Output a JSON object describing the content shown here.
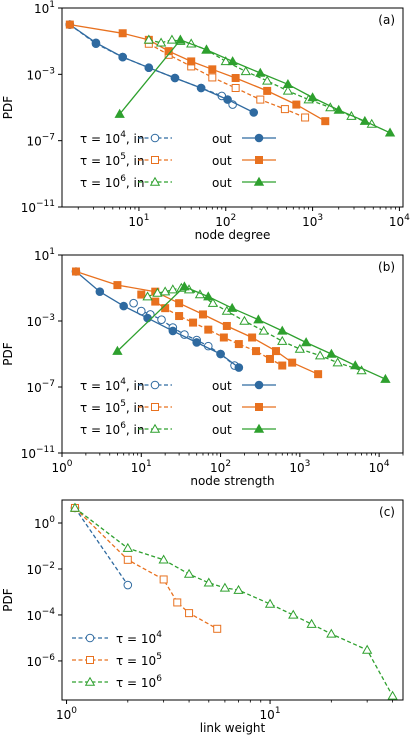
{
  "colors": {
    "blue": "#2f6aa0",
    "orange": "#e8711f",
    "green": "#2ea02e"
  },
  "chart_data": [
    {
      "type": "line",
      "panel_label": "(a)",
      "xlabel": "node degree",
      "ylabel": "PDF",
      "xscale": "log",
      "yscale": "log",
      "xlim": [
        1.3,
        11000
      ],
      "ylim": [
        1e-11,
        10
      ],
      "xticks": [
        {
          "v": 10,
          "t": "10",
          "e": "1"
        },
        {
          "v": 100,
          "t": "10",
          "e": "2"
        },
        {
          "v": 1000,
          "t": "10",
          "e": "3"
        },
        {
          "v": 10000,
          "t": "10",
          "e": "4"
        }
      ],
      "yticks": [
        {
          "v": 10,
          "t": "10",
          "e": "1"
        },
        {
          "v": 0.001,
          "t": "10",
          "e": "−3"
        },
        {
          "v": 1e-07,
          "t": "10",
          "e": "−7"
        },
        {
          "v": 1e-11,
          "t": "10",
          "e": "−11"
        }
      ],
      "legend": {
        "placement": "lower-left",
        "rows": [
          {
            "tau": "τ = 10",
            "exp": "4",
            "in": ", in",
            "out": "out",
            "color": "blue",
            "in_marker": "circle",
            "out_marker": "circle"
          },
          {
            "tau": "τ = 10",
            "exp": "5",
            "in": ", in",
            "out": "out",
            "color": "orange",
            "in_marker": "square",
            "out_marker": "square"
          },
          {
            "tau": "τ = 10",
            "exp": "6",
            "in": ", in",
            "out": "out",
            "color": "green",
            "in_marker": "triangle",
            "out_marker": "triangle"
          }
        ]
      },
      "series": [
        {
          "color": "blue",
          "dash": true,
          "marker": "circle",
          "filled": false,
          "x": [
            1.6,
            3.2,
            6.5,
            13,
            26,
            52,
            90,
            120
          ],
          "y": [
            1.0,
            0.07,
            0.011,
            0.0025,
            0.0006,
            0.00015,
            5e-05,
            1.5e-05
          ]
        },
        {
          "color": "blue",
          "dash": false,
          "marker": "circle",
          "filled": true,
          "x": [
            1.6,
            3.2,
            6.5,
            13,
            26,
            52,
            105,
            210
          ],
          "y": [
            1.0,
            0.08,
            0.011,
            0.0025,
            0.0006,
            0.00015,
            3e-05,
            5e-06
          ]
        },
        {
          "color": "orange",
          "dash": true,
          "marker": "square",
          "filled": false,
          "x": [
            13,
            22,
            40,
            70,
            130,
            250,
            480,
            820
          ],
          "y": [
            0.07,
            0.015,
            0.003,
            0.00065,
            0.00015,
            3e-05,
            8e-06,
            2.5e-06
          ]
        },
        {
          "color": "orange",
          "dash": false,
          "marker": "square",
          "filled": true,
          "x": [
            1.6,
            6.5,
            13,
            22,
            40,
            70,
            130,
            300,
            650,
            1400
          ],
          "y": [
            1.0,
            0.3,
            0.12,
            0.025,
            0.006,
            0.002,
            0.0006,
            0.0001,
            1.5e-05,
            1.5e-06
          ]
        },
        {
          "color": "green",
          "dash": true,
          "marker": "triangle",
          "filled": false,
          "x": [
            13,
            18,
            24,
            30,
            40,
            60,
            100,
            170,
            300,
            520,
            900,
            1600,
            2800,
            4800
          ],
          "y": [
            0.12,
            0.08,
            0.12,
            0.1,
            0.07,
            0.03,
            0.006,
            0.0015,
            0.0004,
            0.0001,
            3e-05,
            1e-05,
            3e-06,
            1e-06
          ]
        },
        {
          "color": "green",
          "dash": false,
          "marker": "triangle",
          "filled": true,
          "x": [
            6,
            30,
            60,
            120,
            250,
            520,
            1000,
            2000,
            4000,
            7800
          ],
          "y": [
            4e-06,
            0.12,
            0.03,
            0.006,
            0.0012,
            0.00025,
            4e-05,
            7e-06,
            1.5e-06,
            3e-07
          ]
        }
      ]
    },
    {
      "type": "line",
      "panel_label": "(b)",
      "xlabel": "node strength",
      "ylabel": "PDF",
      "xscale": "log",
      "yscale": "log",
      "xlim": [
        1,
        20000
      ],
      "ylim": [
        1e-11,
        10
      ],
      "xticks": [
        {
          "v": 1,
          "t": "10",
          "e": "0"
        },
        {
          "v": 10,
          "t": "10",
          "e": "1"
        },
        {
          "v": 100,
          "t": "10",
          "e": "2"
        },
        {
          "v": 1000,
          "t": "10",
          "e": "3"
        },
        {
          "v": 10000,
          "t": "10",
          "e": "4"
        }
      ],
      "yticks": [
        {
          "v": 10,
          "t": "10",
          "e": "1"
        },
        {
          "v": 0.001,
          "t": "10",
          "e": "−3"
        },
        {
          "v": 1e-07,
          "t": "10",
          "e": "−7"
        },
        {
          "v": 1e-11,
          "t": "10",
          "e": "−11"
        }
      ],
      "legend": {
        "placement": "lower-left",
        "rows": [
          {
            "tau": "τ = 10",
            "exp": "4",
            "in": ", in",
            "out": "out",
            "color": "blue",
            "in_marker": "circle",
            "out_marker": "circle"
          },
          {
            "tau": "τ = 10",
            "exp": "5",
            "in": ", in",
            "out": "out",
            "color": "orange",
            "in_marker": "square",
            "out_marker": "square"
          },
          {
            "tau": "τ = 10",
            "exp": "6",
            "in": ", in",
            "out": "out",
            "color": "green",
            "in_marker": "triangle",
            "out_marker": "triangle"
          }
        ]
      },
      "series": [
        {
          "color": "blue",
          "dash": true,
          "marker": "circle",
          "filled": false,
          "x": [
            8,
            10,
            13,
            18,
            25,
            35,
            50,
            70,
            100,
            150
          ],
          "y": [
            0.012,
            0.004,
            0.0025,
            0.0012,
            0.0004,
            0.00015,
            7e-05,
            3e-05,
            1e-05,
            2e-06
          ]
        },
        {
          "color": "blue",
          "dash": false,
          "marker": "circle",
          "filled": true,
          "x": [
            1.5,
            3,
            6,
            12,
            25,
            50,
            100,
            170
          ],
          "y": [
            1.0,
            0.06,
            0.008,
            0.0015,
            0.00025,
            5e-05,
            1e-05,
            1.5e-06
          ]
        },
        {
          "color": "orange",
          "dash": true,
          "marker": "square",
          "filled": true,
          "x": [
            10,
            15,
            20,
            30,
            45,
            70,
            110,
            170,
            280,
            420,
            600
          ],
          "y": [
            0.04,
            0.015,
            0.006,
            0.002,
            0.0008,
            0.0003,
            0.0001,
            4e-05,
            1.5e-05,
            5e-06,
            2e-06
          ]
        },
        {
          "color": "orange",
          "dash": false,
          "marker": "square",
          "filled": true,
          "x": [
            1.5,
            5,
            15,
            30,
            60,
            120,
            250,
            500,
            800,
            1700
          ],
          "y": [
            1.0,
            0.15,
            0.06,
            0.012,
            0.0025,
            0.0005,
            0.0001,
            1.5e-05,
            3e-06,
            6e-07
          ]
        },
        {
          "color": "green",
          "dash": true,
          "marker": "triangle",
          "filled": false,
          "x": [
            12,
            16,
            20,
            25,
            32,
            40,
            55,
            80,
            120,
            200,
            350,
            600,
            1000,
            1800,
            3000,
            6000
          ],
          "y": [
            0.03,
            0.05,
            0.06,
            0.08,
            0.1,
            0.08,
            0.04,
            0.012,
            0.004,
            0.001,
            0.00025,
            6e-05,
            2e-05,
            8e-06,
            3e-06,
            1e-06
          ]
        },
        {
          "color": "green",
          "dash": false,
          "marker": "triangle",
          "filled": true,
          "x": [
            5,
            35,
            70,
            140,
            300,
            600,
            1200,
            2500,
            5000,
            12000
          ],
          "y": [
            1.5e-05,
            0.12,
            0.03,
            0.006,
            0.0012,
            0.00025,
            5e-05,
            1e-05,
            2e-06,
            3e-07
          ]
        }
      ]
    },
    {
      "type": "line",
      "panel_label": "(c)",
      "xlabel": "link weight",
      "ylabel": "PDF",
      "xscale": "log",
      "yscale": "log",
      "xlim": [
        0.95,
        45
      ],
      "ylim": [
        2e-08,
        10
      ],
      "xticks": [
        {
          "v": 1,
          "t": "10",
          "e": "0"
        },
        {
          "v": 10,
          "t": "10",
          "e": "1"
        }
      ],
      "yticks": [
        {
          "v": 1,
          "t": "10",
          "e": "0"
        },
        {
          "v": 0.01,
          "t": "10",
          "e": "−2"
        },
        {
          "v": 0.0001,
          "t": "10",
          "e": "−4"
        },
        {
          "v": 1e-06,
          "t": "10",
          "e": "−6"
        }
      ],
      "legend": {
        "placement": "lower-left",
        "rows": [
          {
            "tau": "τ = 10",
            "exp": "4",
            "color": "blue",
            "in_marker": "circle"
          },
          {
            "tau": "τ = 10",
            "exp": "5",
            "color": "orange",
            "in_marker": "square"
          },
          {
            "tau": "τ = 10",
            "exp": "6",
            "color": "green",
            "in_marker": "triangle"
          }
        ]
      },
      "series": [
        {
          "color": "blue",
          "dash": true,
          "marker": "circle",
          "filled": false,
          "x": [
            1.1,
            2
          ],
          "y": [
            4.5,
            0.002
          ]
        },
        {
          "color": "orange",
          "dash": true,
          "marker": "square",
          "filled": false,
          "x": [
            1.1,
            2,
            3,
            3.5,
            4,
            5.5
          ],
          "y": [
            4.5,
            0.025,
            0.0035,
            0.00035,
            0.00012,
            2.5e-05
          ]
        },
        {
          "color": "green",
          "dash": true,
          "marker": "triangle",
          "filled": false,
          "x": [
            1.1,
            2,
            3,
            4,
            5,
            6,
            7,
            10,
            13,
            16,
            20,
            30,
            40
          ],
          "y": [
            4.5,
            0.08,
            0.025,
            0.006,
            0.0025,
            0.0015,
            0.0012,
            0.0003,
            0.0001,
            4e-05,
            1.5e-05,
            3e-06,
            3e-08
          ]
        }
      ]
    }
  ]
}
